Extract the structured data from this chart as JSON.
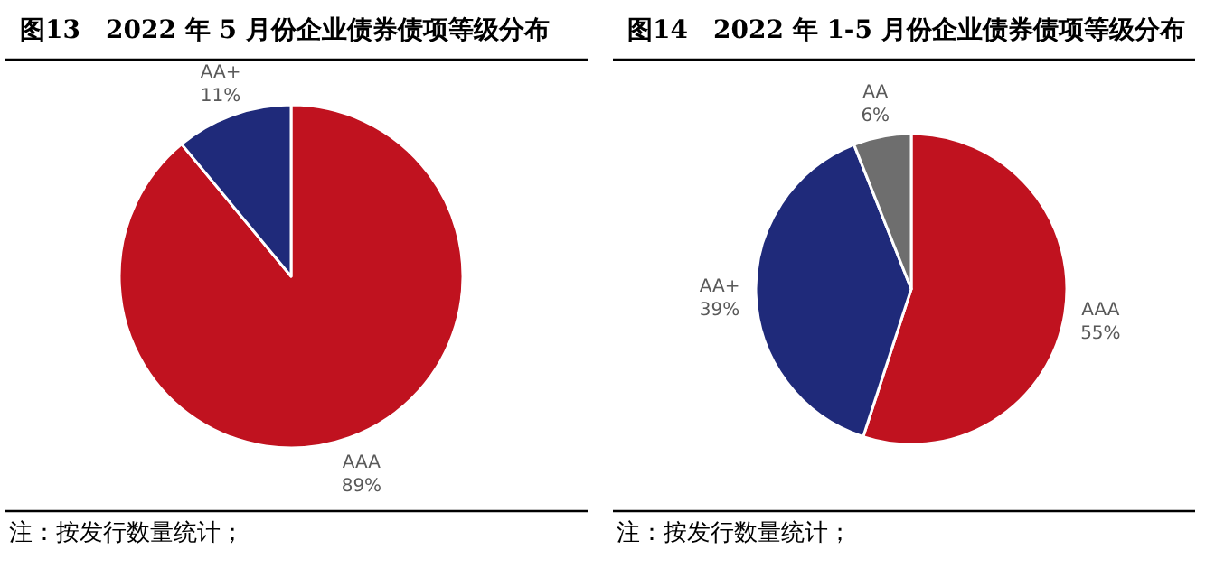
{
  "chart_data": [
    {
      "type": "pie",
      "title": "图13　2022 年 5 月份企业债券债项等级分布",
      "categories": [
        "AAA",
        "AA+"
      ],
      "values": [
        89,
        11
      ],
      "colors": [
        "#c0121f",
        "#1f2a7a"
      ],
      "value_labels": [
        "89%",
        "11%"
      ],
      "annotations": [
        "注：按发行数量统计；"
      ]
    },
    {
      "type": "pie",
      "title": "图14　2022 年 1-5 月份企业债券债项等级分布",
      "categories": [
        "AAA",
        "AA+",
        "AA"
      ],
      "values": [
        55,
        39,
        6
      ],
      "colors": [
        "#c0121f",
        "#1f2a7a",
        "#6e6e6e"
      ],
      "value_labels": [
        "55%",
        "39%",
        "6%"
      ],
      "annotations": [
        "注：按发行数量统计；"
      ]
    }
  ]
}
